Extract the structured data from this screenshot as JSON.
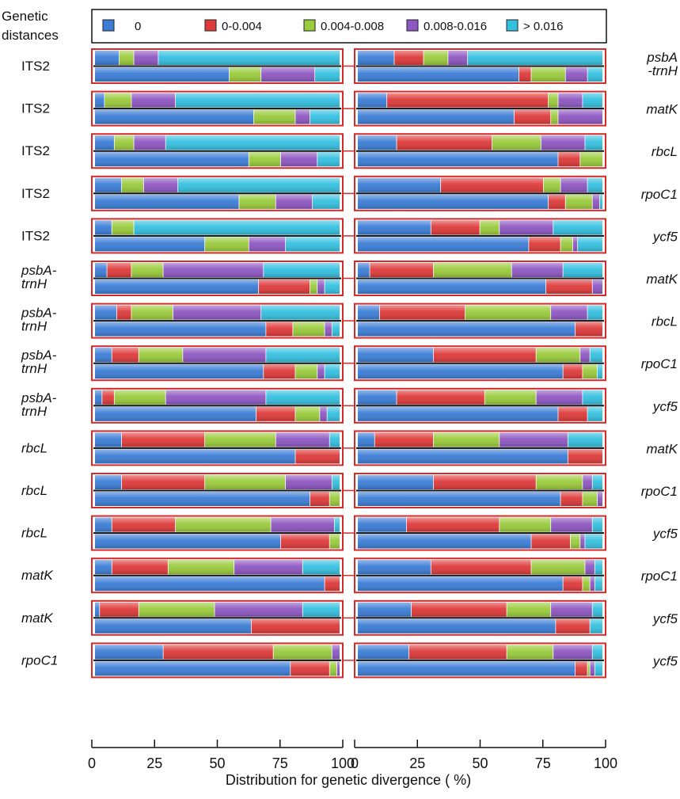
{
  "chart_data": {
    "type": "bar",
    "subtype": "paired-stacked-horizontal-100-percent",
    "legend_title": "Genetic distances",
    "xlabel": "Distribution for genetic divergence ( %)",
    "xlim": [
      0,
      100
    ],
    "xticks": [
      "0",
      "25",
      "50",
      "75",
      "100"
    ],
    "legend_position": "top",
    "categories": [
      "0",
      "0-0.004",
      "0.004-0.008",
      "0.008-0.016",
      "> 0.016"
    ],
    "category_colors": [
      "#3c7dd6",
      "#de3a3a",
      "#9acb3c",
      "#8e57c2",
      "#35c0e0"
    ],
    "frame_color": "#d42a2a",
    "rows": [
      {
        "left_label": "ITS2",
        "left_italic": false,
        "right_label": "psbA\n-trnH",
        "left_top": [
          10,
          0,
          6,
          10,
          74
        ],
        "left_bottom": [
          55,
          0,
          13,
          22,
          10
        ],
        "right_top": [
          15,
          12,
          10,
          8,
          55
        ],
        "right_bottom": [
          66,
          5,
          14,
          9,
          6
        ]
      },
      {
        "left_label": "ITS2",
        "left_italic": false,
        "right_label": "matK",
        "left_top": [
          4,
          0,
          11,
          18,
          67
        ],
        "left_bottom": [
          65,
          0,
          17,
          6,
          12
        ],
        "right_top": [
          12,
          66,
          4,
          10,
          8
        ],
        "right_bottom": [
          64,
          15,
          3,
          18,
          0
        ]
      },
      {
        "left_label": "ITS2",
        "left_italic": false,
        "right_label": "rbcL",
        "left_top": [
          8,
          0,
          8,
          13,
          71
        ],
        "left_bottom": [
          63,
          0,
          13,
          15,
          9
        ],
        "right_top": [
          16,
          39,
          20,
          18,
          7
        ],
        "right_bottom": [
          82,
          9,
          9,
          0,
          0
        ]
      },
      {
        "left_label": "ITS2",
        "left_italic": false,
        "right_label": "rpoC1",
        "left_top": [
          11,
          0,
          9,
          14,
          66
        ],
        "left_bottom": [
          59,
          0,
          15,
          15,
          11
        ],
        "right_top": [
          34,
          42,
          7,
          11,
          6
        ],
        "right_bottom": [
          78,
          7,
          11,
          3,
          1
        ]
      },
      {
        "left_label": "ITS2",
        "left_italic": false,
        "right_label": "ycf5",
        "left_top": [
          7,
          0,
          9,
          0,
          84
        ],
        "left_bottom": [
          45,
          0,
          18,
          15,
          22
        ],
        "right_top": [
          30,
          20,
          8,
          22,
          20
        ],
        "right_bottom": [
          70,
          13,
          5,
          2,
          10
        ]
      },
      {
        "left_label": "psbA-\ntrnH",
        "left_italic": true,
        "right_label": "matK",
        "left_top": [
          5,
          10,
          13,
          41,
          31
        ],
        "left_bottom": [
          67,
          21,
          3,
          3,
          6
        ],
        "right_top": [
          5,
          26,
          32,
          21,
          16
        ],
        "right_bottom": [
          77,
          19,
          0,
          4,
          0
        ]
      },
      {
        "left_label": "psbA-\ntrnH",
        "left_italic": true,
        "right_label": "rbcL",
        "left_top": [
          9,
          6,
          17,
          36,
          32
        ],
        "left_bottom": [
          70,
          11,
          13,
          3,
          3
        ],
        "right_top": [
          9,
          35,
          35,
          15,
          6
        ],
        "right_bottom": [
          89,
          11,
          0,
          0,
          0
        ]
      },
      {
        "left_label": "psbA-\ntrnH",
        "left_italic": true,
        "right_label": "rpoC1",
        "left_top": [
          7,
          11,
          18,
          34,
          30
        ],
        "left_bottom": [
          69,
          13,
          9,
          3,
          6
        ],
        "right_top": [
          31,
          42,
          18,
          4,
          5
        ],
        "right_bottom": [
          84,
          8,
          6,
          0,
          2
        ]
      },
      {
        "left_label": "psbA-\ntrnH",
        "left_italic": true,
        "right_label": "ycf5",
        "left_top": [
          3,
          5,
          21,
          41,
          30
        ],
        "left_bottom": [
          66,
          16,
          10,
          3,
          5
        ],
        "right_top": [
          16,
          36,
          21,
          19,
          8
        ],
        "right_bottom": [
          82,
          12,
          0,
          0,
          6
        ]
      },
      {
        "left_label": "rbcL",
        "left_italic": true,
        "right_label": "matK",
        "left_top": [
          11,
          34,
          29,
          22,
          4
        ],
        "left_bottom": [
          82,
          18,
          0,
          0,
          0
        ],
        "right_top": [
          7,
          24,
          27,
          28,
          14
        ],
        "right_bottom": [
          86,
          14,
          0,
          0,
          0
        ]
      },
      {
        "left_label": "rbcL",
        "left_italic": true,
        "right_label": "rpoC1",
        "left_top": [
          11,
          34,
          33,
          19,
          3
        ],
        "left_bottom": [
          88,
          8,
          4,
          0,
          0
        ],
        "right_top": [
          31,
          42,
          19,
          4,
          4
        ],
        "right_bottom": [
          83,
          9,
          6,
          2,
          0
        ]
      },
      {
        "left_label": "rbcL",
        "left_italic": true,
        "right_label": "ycf5",
        "left_top": [
          7,
          26,
          39,
          26,
          2
        ],
        "left_bottom": [
          76,
          20,
          4,
          0,
          0
        ],
        "right_top": [
          20,
          38,
          21,
          17,
          4
        ],
        "right_bottom": [
          71,
          16,
          4,
          2,
          7
        ]
      },
      {
        "left_label": "matK",
        "left_italic": true,
        "right_label": "rpoC1",
        "left_top": [
          7,
          23,
          27,
          28,
          15
        ],
        "left_bottom": [
          94,
          6,
          0,
          0,
          0
        ],
        "right_top": [
          30,
          41,
          22,
          4,
          3
        ],
        "right_bottom": [
          84,
          8,
          3,
          2,
          3
        ]
      },
      {
        "left_label": "matK",
        "left_italic": true,
        "right_label": "ycf5",
        "left_top": [
          2,
          16,
          31,
          36,
          15
        ],
        "left_bottom": [
          64,
          36,
          0,
          0,
          0
        ],
        "right_top": [
          22,
          39,
          18,
          17,
          4
        ],
        "right_bottom": [
          81,
          14,
          0,
          0,
          5
        ]
      },
      {
        "left_label": "rpoC1",
        "left_italic": true,
        "right_label": "ycf5",
        "left_top": [
          28,
          45,
          24,
          3,
          0
        ],
        "left_bottom": [
          80,
          16,
          3,
          1,
          0
        ],
        "right_top": [
          21,
          40,
          19,
          16,
          4
        ],
        "right_bottom": [
          89,
          5,
          1,
          2,
          3
        ]
      }
    ]
  }
}
